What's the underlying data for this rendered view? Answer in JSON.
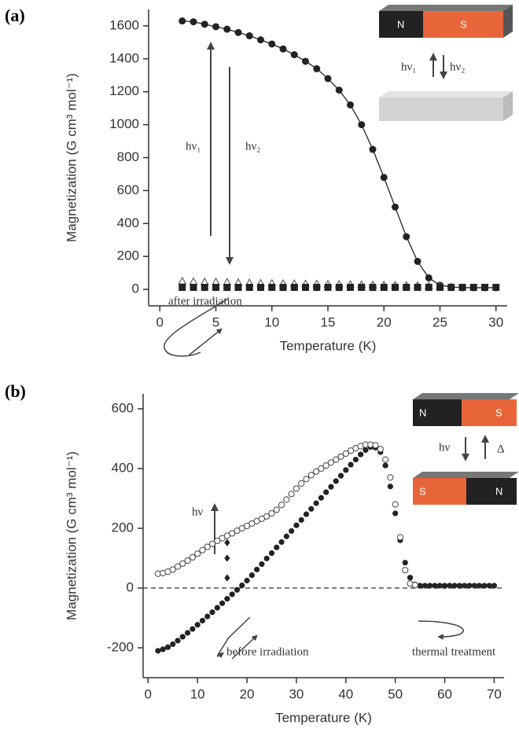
{
  "chart_data": [
    {
      "type": "scatter",
      "panel_label": "(a)",
      "x_label": "Temperature (K)",
      "y_label": "Magnetization (G cm³ mol⁻¹)",
      "xlim": [
        -1,
        31
      ],
      "ylim": [
        -100,
        1700
      ],
      "xticks": [
        0,
        5,
        10,
        15,
        20,
        25,
        30
      ],
      "yticks": [
        0,
        200,
        400,
        600,
        800,
        1000,
        1200,
        1400,
        1600
      ],
      "zero_line": false,
      "annotations": [
        "hν₁",
        "hν₂",
        "N",
        "S",
        "hν₁",
        "hν₂"
      ],
      "series": [
        {
          "marker": "circle",
          "color": "#222",
          "line": true,
          "x": [
            2,
            3,
            4,
            5,
            6,
            7,
            8,
            9,
            10,
            11,
            12,
            13,
            14,
            15,
            16,
            17,
            18,
            19,
            20,
            21,
            22,
            23,
            24,
            25,
            26,
            27,
            28,
            29,
            30
          ],
          "values": [
            1630,
            1625,
            1610,
            1595,
            1580,
            1560,
            1540,
            1515,
            1490,
            1460,
            1425,
            1385,
            1340,
            1280,
            1210,
            1120,
            1000,
            850,
            680,
            500,
            320,
            170,
            70,
            25,
            15,
            10,
            10,
            10,
            10
          ]
        },
        {
          "marker": "open-triangle",
          "color": "#444",
          "line": false,
          "x": [
            2,
            3,
            4,
            5,
            6,
            7,
            8,
            9,
            10,
            11,
            12,
            13,
            14,
            15,
            16,
            17,
            18,
            19,
            20,
            21,
            22,
            23,
            24,
            25
          ],
          "values": [
            50,
            48,
            46,
            45,
            44,
            42,
            40,
            38,
            37,
            36,
            35,
            34,
            33,
            32,
            31,
            30,
            29,
            28,
            27,
            26,
            25,
            24,
            22,
            20
          ]
        },
        {
          "marker": "square",
          "color": "#222",
          "line": false,
          "x": [
            2,
            3,
            4,
            5,
            6,
            7,
            8,
            9,
            10,
            11,
            12,
            13,
            14,
            15,
            16,
            17,
            18,
            19,
            20,
            21,
            22,
            23,
            24,
            25,
            26,
            27,
            28,
            29,
            30
          ],
          "values": [
            12,
            12,
            12,
            12,
            12,
            12,
            12,
            12,
            12,
            12,
            12,
            12,
            12,
            12,
            12,
            12,
            12,
            12,
            12,
            12,
            12,
            12,
            12,
            12,
            12,
            12,
            12,
            12,
            12
          ]
        }
      ]
    },
    {
      "type": "scatter",
      "panel_label": "(b)",
      "x_label": "Temperature (K)",
      "y_label": "Magnetization (G cm³ mol⁻¹)",
      "xlim": [
        -1,
        72
      ],
      "ylim": [
        -300,
        650
      ],
      "xticks": [
        0,
        10,
        20,
        30,
        40,
        50,
        60,
        70
      ],
      "yticks": [
        -200,
        0,
        200,
        400,
        600
      ],
      "zero_line": true,
      "annotations": [
        "after irradiation",
        "hν",
        "before irradiation",
        "thermal treatment",
        "N",
        "S",
        "hν",
        "Δ",
        "S",
        "N"
      ],
      "series": [
        {
          "marker": "circle",
          "color": "#222",
          "line": false,
          "x": [
            2,
            3,
            4,
            5,
            6,
            7,
            8,
            9,
            10,
            11,
            12,
            13,
            14,
            15,
            16,
            17,
            18,
            19,
            20,
            21,
            22,
            23,
            24,
            25,
            26,
            27,
            28,
            29,
            30,
            31,
            32,
            33,
            34,
            35,
            36,
            37,
            38,
            39,
            40,
            41,
            42,
            43,
            44,
            45,
            46,
            47,
            48,
            49,
            50,
            51,
            52,
            53,
            54,
            55,
            56,
            57,
            58,
            59,
            60,
            61,
            62,
            63,
            64,
            65,
            66,
            67,
            68,
            69,
            70
          ],
          "values": [
            -210,
            -205,
            -198,
            -188,
            -176,
            -163,
            -150,
            -137,
            -123,
            -109,
            -95,
            -81,
            -66,
            -51,
            -36,
            -21,
            -6,
            9,
            25,
            43,
            62,
            80,
            99,
            117,
            136,
            154,
            173,
            191,
            210,
            228,
            247,
            265,
            284,
            302,
            321,
            339,
            358,
            376,
            395,
            413,
            430,
            447,
            462,
            472,
            470,
            455,
            410,
            340,
            250,
            160,
            85,
            35,
            12,
            8,
            8,
            8,
            8,
            8,
            8,
            8,
            8,
            8,
            8,
            8,
            8,
            8,
            8,
            8,
            8
          ]
        },
        {
          "marker": "open-circle",
          "color": "#444",
          "line": false,
          "x": [
            2,
            3,
            4,
            5,
            6,
            7,
            8,
            9,
            10,
            11,
            12,
            13,
            14,
            15,
            16,
            17,
            18,
            19,
            20,
            21,
            22,
            23,
            24,
            25,
            26,
            27,
            28,
            29,
            30,
            31,
            32,
            33,
            34,
            35,
            36,
            37,
            38,
            39,
            40,
            41,
            42,
            43,
            44,
            45,
            46,
            47,
            48,
            49,
            50,
            51,
            52,
            53,
            54
          ],
          "values": [
            48,
            50,
            55,
            62,
            72,
            82,
            92,
            103,
            115,
            127,
            138,
            148,
            158,
            167,
            175,
            183,
            192,
            200,
            208,
            216,
            224,
            232,
            240,
            250,
            262,
            278,
            296,
            315,
            333,
            350,
            365,
            378,
            390,
            400,
            410,
            420,
            430,
            440,
            450,
            460,
            468,
            475,
            480,
            480,
            478,
            465,
            430,
            370,
            280,
            170,
            60,
            15,
            10
          ]
        },
        {
          "marker": "diamond",
          "color": "#222",
          "line": false,
          "x": [
            16,
            16,
            16
          ],
          "values": [
            152,
            100,
            34
          ]
        }
      ]
    }
  ]
}
